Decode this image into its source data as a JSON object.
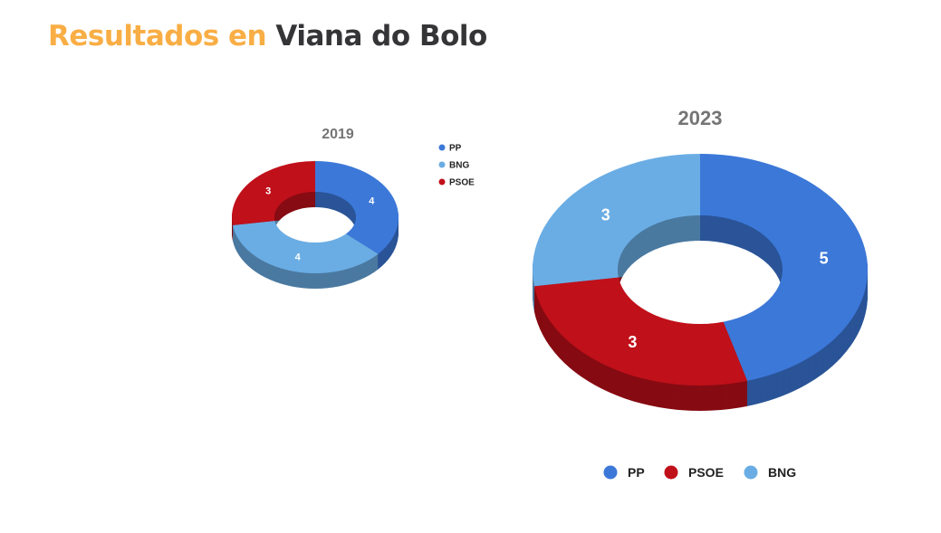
{
  "title": {
    "highlight": "Resultados en",
    "place": "Viana do Bolo"
  },
  "chart_data": [
    {
      "type": "pie",
      "donut": true,
      "title": "2019",
      "legend_position": "right",
      "categories": [
        "PP",
        "BNG",
        "PSOE"
      ],
      "values": [
        4,
        4,
        3
      ],
      "colors": [
        "#3c78d8",
        "#6aade4",
        "#c0101a"
      ]
    },
    {
      "type": "pie",
      "donut": true,
      "title": "2023",
      "legend_position": "bottom",
      "categories": [
        "PP",
        "PSOE",
        "BNG"
      ],
      "values": [
        5,
        3,
        3
      ],
      "colors": [
        "#3c78d8",
        "#c0101a",
        "#6aade4"
      ]
    }
  ]
}
